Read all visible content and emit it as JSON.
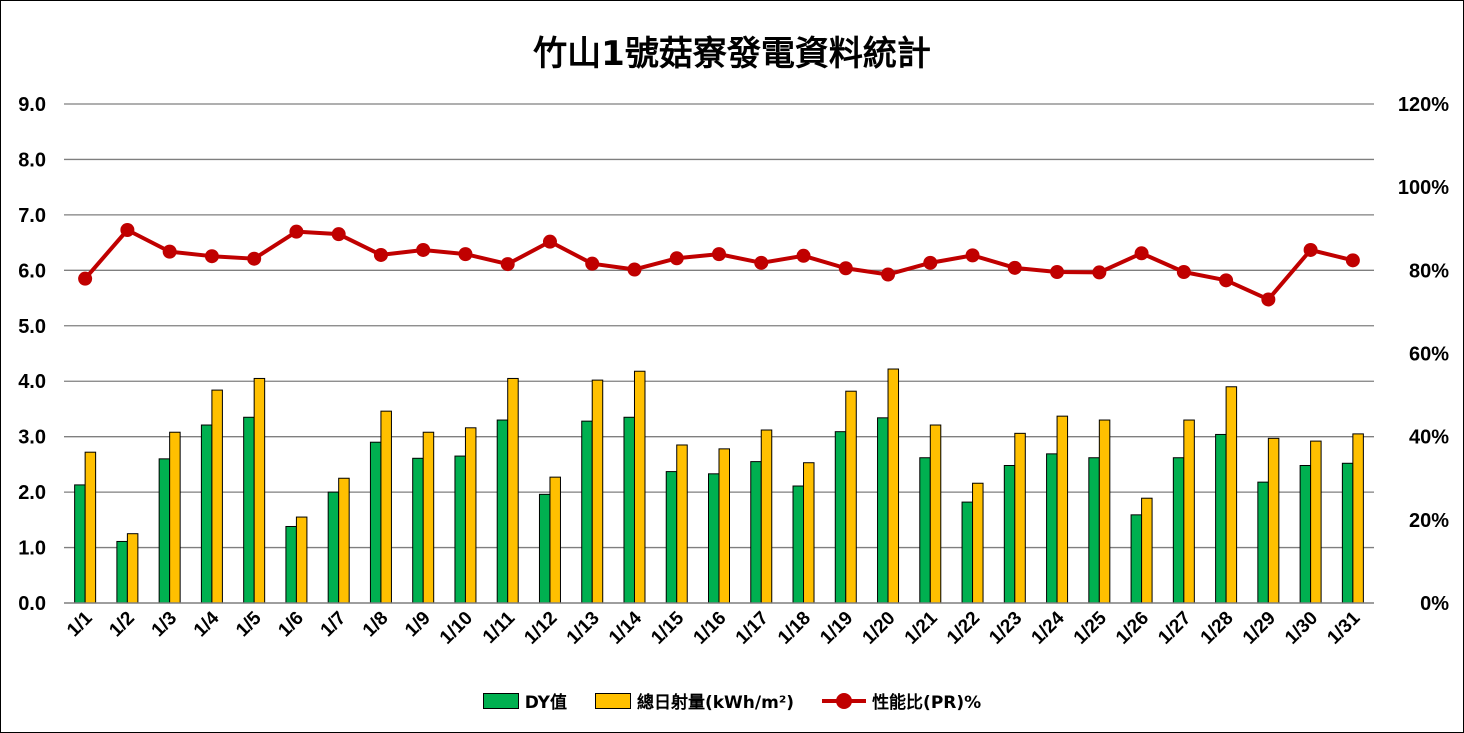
{
  "chart_data": {
    "type": "bar",
    "title": "竹山1號菇寮發電資料統計",
    "categories": [
      "1/1",
      "1/2",
      "1/3",
      "1/4",
      "1/5",
      "1/6",
      "1/7",
      "1/8",
      "1/9",
      "1/10",
      "1/11",
      "1/12",
      "1/13",
      "1/14",
      "1/15",
      "1/16",
      "1/17",
      "1/18",
      "1/19",
      "1/20",
      "1/21",
      "1/22",
      "1/23",
      "1/24",
      "1/25",
      "1/26",
      "1/27",
      "1/28",
      "1/29",
      "1/30",
      "1/31"
    ],
    "y_left": {
      "range": [
        0,
        9
      ],
      "ticks": [
        "0.0",
        "1.0",
        "2.0",
        "3.0",
        "4.0",
        "5.0",
        "6.0",
        "7.0",
        "8.0",
        "9.0"
      ]
    },
    "y_right": {
      "range": [
        0,
        120
      ],
      "unit": "%",
      "ticks": [
        "0%",
        "20%",
        "40%",
        "60%",
        "80%",
        "100%",
        "120%"
      ]
    },
    "grid": "horizontal",
    "legend_position": "bottom",
    "series": [
      {
        "name": "DY值",
        "type": "bar",
        "axis": "left",
        "color": "#00B050",
        "values": [
          2.13,
          1.11,
          2.6,
          3.21,
          3.35,
          1.38,
          2.0,
          2.9,
          2.61,
          2.65,
          3.3,
          1.96,
          3.28,
          3.35,
          2.37,
          2.33,
          2.55,
          2.11,
          3.09,
          3.34,
          2.62,
          1.82,
          2.48,
          2.69,
          2.62,
          1.59,
          2.62,
          3.04,
          2.18,
          2.48,
          2.52
        ]
      },
      {
        "name": "總日射量(kWh/m²)",
        "type": "bar",
        "axis": "left",
        "color": "#FFC000",
        "values": [
          2.72,
          1.25,
          3.08,
          3.84,
          4.05,
          1.55,
          2.25,
          3.46,
          3.08,
          3.16,
          4.05,
          2.27,
          4.02,
          4.18,
          2.85,
          2.78,
          3.12,
          2.53,
          3.82,
          4.22,
          3.21,
          2.16,
          3.06,
          3.37,
          3.3,
          1.89,
          3.3,
          3.9,
          2.97,
          2.92,
          3.05
        ]
      },
      {
        "name": "性能比(PR)%",
        "type": "line",
        "axis": "right",
        "color": "#C00000",
        "values": [
          78.0,
          89.7,
          84.5,
          83.4,
          82.8,
          89.3,
          88.7,
          83.7,
          84.9,
          83.9,
          81.5,
          86.9,
          81.6,
          80.2,
          82.9,
          83.9,
          81.8,
          83.5,
          80.5,
          79.0,
          81.8,
          83.6,
          80.6,
          79.6,
          79.5,
          84.1,
          79.6,
          77.6,
          73.0,
          84.9,
          82.4
        ]
      }
    ]
  }
}
